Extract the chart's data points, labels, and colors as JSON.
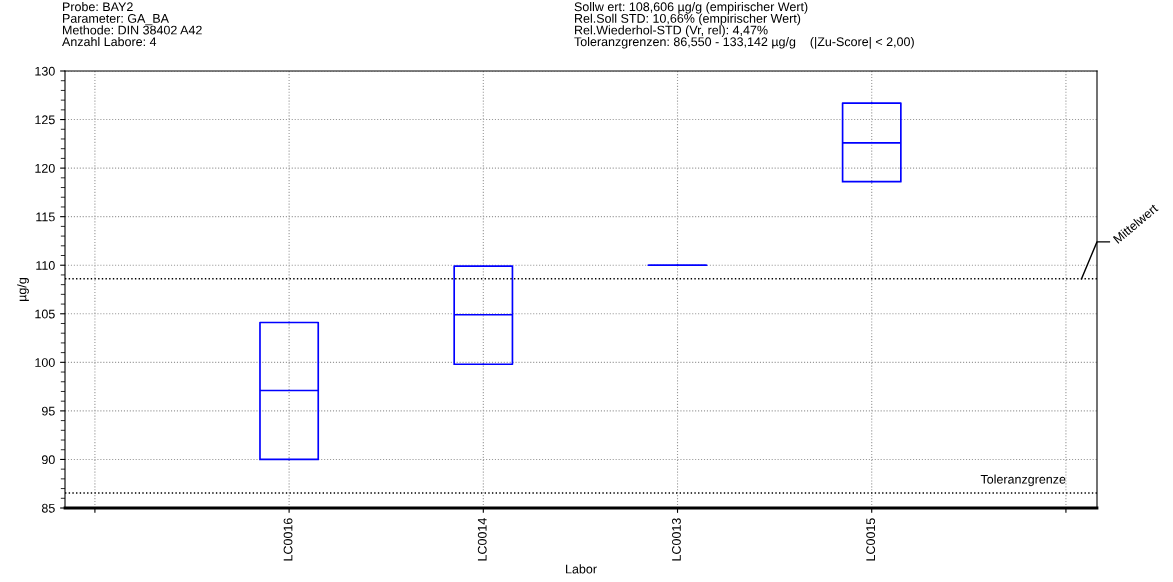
{
  "chart_data": {
    "type": "box",
    "title": "Probe: BAY2\nParameter: GA_BA\nMethode: DIN 38402 A42\nAnzahl Labore: 4",
    "subtitle": "Sollw ert: 108,606 µg/g (empirischer Wert)\nRel.Soll STD: 10,66% (empirischer Wert)\nRel.Wiederhol-STD (Vr, rel): 4,47%\nToleranzgrenzen: 86,550 - 133,142 µg/g    (|Zu-Score| < 2,00)",
    "xlabel": "Labor",
    "ylabel": "µg/g",
    "categories": [
      null,
      "LC0016",
      "LC0014",
      "LC0013",
      "LC0015",
      null
    ],
    "boxes": [
      null,
      {
        "low": 90.0,
        "q1": 90.0,
        "median": 97.1,
        "q3": 104.1,
        "high": 104.1
      },
      {
        "low": 99.8,
        "q1": 99.8,
        "median": 104.9,
        "q3": 109.9,
        "high": 109.9
      },
      {
        "low": 110.0,
        "q1": 110.0,
        "median": 110.0,
        "q3": 110.0,
        "high": 110.0
      },
      {
        "low": 118.6,
        "q1": 118.6,
        "median": 122.6,
        "q3": 126.7,
        "high": 126.7
      },
      null
    ],
    "color": "#0000ff",
    "ylim": [
      85,
      130
    ],
    "yticks": [
      85,
      90,
      95,
      100,
      105,
      110,
      115,
      120,
      125,
      130
    ],
    "ref_lines": [
      {
        "axis": "y",
        "value": 108.606,
        "label": "Mittelwert",
        "color": "#000000",
        "line_style": "dotted"
      },
      {
        "axis": "y",
        "value": 86.55,
        "label": "Toleranzgrenze",
        "color": "#000000",
        "line_style": "dotted"
      }
    ],
    "grid": true
  }
}
